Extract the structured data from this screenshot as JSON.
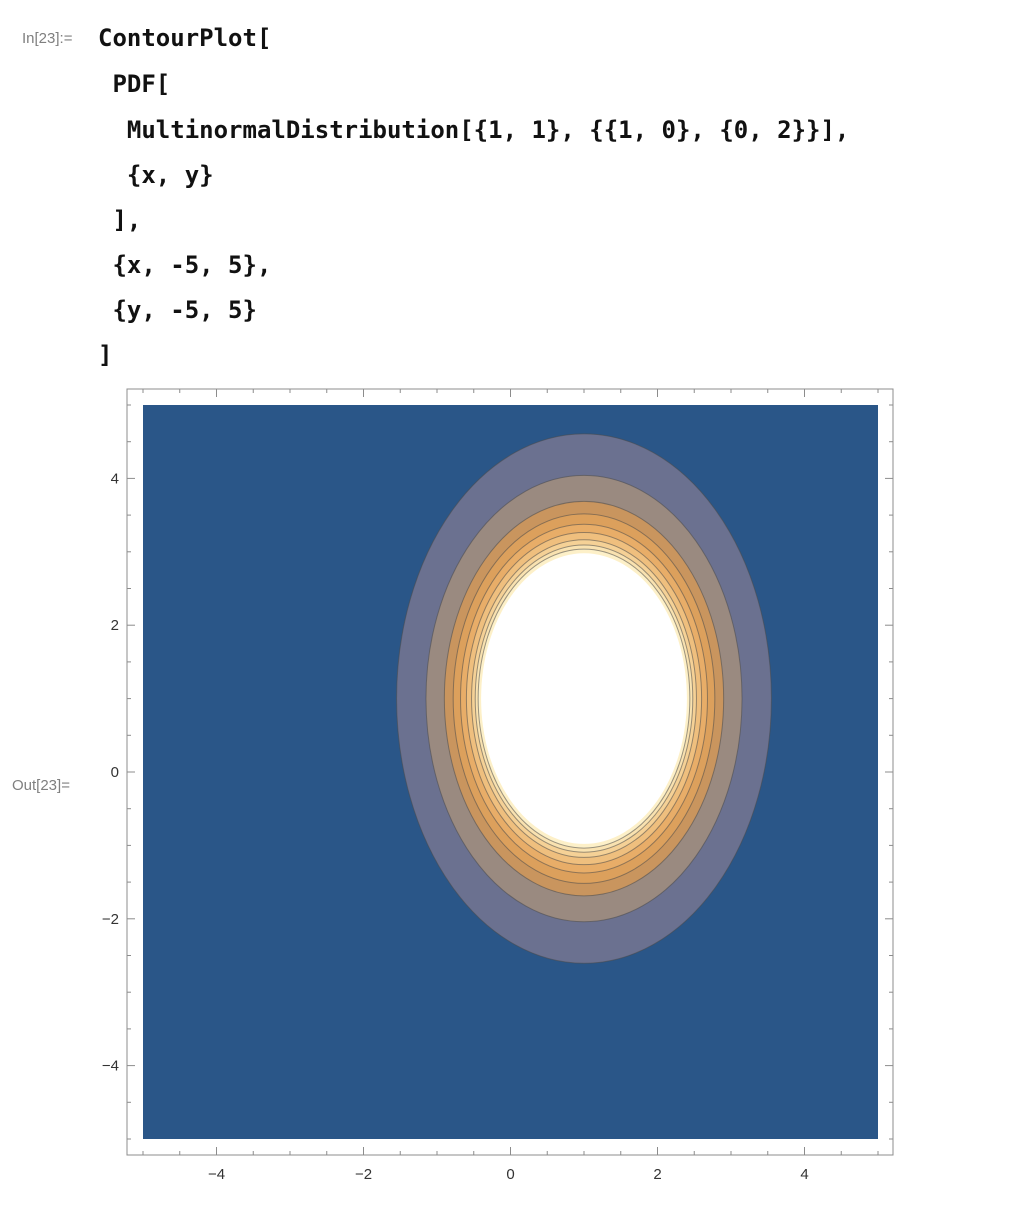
{
  "notebook": {
    "input_label": "In[23]:=",
    "output_label": "Out[23]=",
    "code_lines": [
      "ContourPlot[",
      " PDF[",
      "  MultinormalDistribution[{1, 1}, {{1, 0}, {0, 2}}],",
      "  {x, y}",
      " ],",
      " {x, -5, 5},",
      " {y, -5, 5}",
      "]"
    ]
  },
  "chart_data": {
    "type": "contour",
    "title": "",
    "xlabel": "",
    "ylabel": "",
    "xlim": [
      -5,
      5
    ],
    "ylim": [
      -5,
      5
    ],
    "function": "PDF of MultinormalDistribution, mean {1, 1}, covariance {{1, 0}, {0, 2}}",
    "mean": [
      1,
      1
    ],
    "covariance": [
      [
        1,
        0
      ],
      [
        0,
        2
      ]
    ],
    "x_ticks": [
      -4,
      -2,
      0,
      2,
      4
    ],
    "y_ticks": [
      -4,
      -2,
      0,
      2,
      4
    ],
    "x_tick_labels": [
      "−4",
      "−2",
      "0",
      "2",
      "4"
    ],
    "y_tick_labels": [
      "4",
      "2",
      "0",
      "−2",
      "−4"
    ],
    "contour_levels": [
      {
        "mahalanobis_radius": 2.55,
        "color": "#6b7190"
      },
      {
        "mahalanobis_radius": 2.15,
        "color": "#9a8a80"
      },
      {
        "mahalanobis_radius": 1.9,
        "color": "#c9955e"
      },
      {
        "mahalanobis_radius": 1.78,
        "color": "#dca05c"
      },
      {
        "mahalanobis_radius": 1.68,
        "color": "#e8ad68"
      },
      {
        "mahalanobis_radius": 1.6,
        "color": "#efbf7e"
      },
      {
        "mahalanobis_radius": 1.53,
        "color": "#f5d196"
      },
      {
        "mahalanobis_radius": 1.48,
        "color": "#f9e2b0"
      },
      {
        "mahalanobis_radius": 1.44,
        "color": "#fdf0c8"
      },
      {
        "mahalanobis_radius": 1.4,
        "color": "#ffffff"
      }
    ],
    "background_color": "#2a5688",
    "grid": false,
    "legend": "none"
  }
}
